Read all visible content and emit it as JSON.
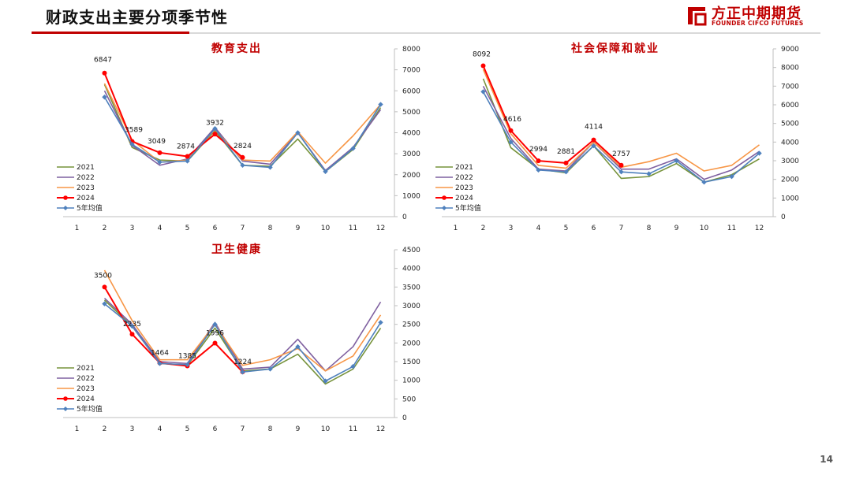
{
  "header": {
    "title": "财政支出主要分项季节性",
    "logo_cn": "方正中期期货",
    "logo_en": "FOUNDER CIFCO FUTURES"
  },
  "page_number": "14",
  "colors": {
    "2021": "#77933c",
    "2022": "#7f60a0",
    "2023": "#f79646",
    "2024": "#ff0000",
    "avg": "#4f81bd",
    "brand": "#c00000"
  },
  "chart_data": [
    {
      "type": "line",
      "title": "教育支出",
      "x": [
        "1",
        "2",
        "3",
        "4",
        "5",
        "6",
        "7",
        "8",
        "9",
        "10",
        "11",
        "12"
      ],
      "ylim": [
        0,
        8000
      ],
      "yticks": [
        0,
        1000,
        2000,
        3000,
        4000,
        5000,
        6000,
        7000,
        8000
      ],
      "legend_position": "left",
      "series": [
        {
          "name": "2021",
          "values": [
            null,
            6300,
            3300,
            2700,
            2650,
            4100,
            2450,
            2400,
            3700,
            2150,
            3200,
            5200
          ]
        },
        {
          "name": "2022",
          "values": [
            null,
            6000,
            3400,
            2450,
            2750,
            4250,
            2650,
            2500,
            4000,
            2200,
            3300,
            5100
          ]
        },
        {
          "name": "2023",
          "values": [
            null,
            6350,
            3650,
            2600,
            2700,
            4150,
            2700,
            2650,
            4050,
            2550,
            3850,
            5350
          ]
        },
        {
          "name": "2024",
          "values": [
            null,
            6847,
            3589,
            3049,
            2874,
            3932,
            2824,
            null,
            null,
            null,
            null,
            null
          ]
        },
        {
          "name": "5年均值",
          "values": [
            null,
            5700,
            3450,
            2600,
            2650,
            4200,
            2450,
            2350,
            4000,
            2150,
            3250,
            5350
          ]
        }
      ],
      "data_labels": [
        {
          "text": "6847"
        },
        {
          "text": "3589"
        },
        {
          "text": "3049"
        },
        {
          "text": "2874"
        },
        {
          "text": "3932"
        },
        {
          "text": "2824"
        }
      ]
    },
    {
      "type": "line",
      "title": "社会保障和就业",
      "x": [
        "1",
        "2",
        "3",
        "4",
        "5",
        "6",
        "7",
        "8",
        "9",
        "10",
        "11",
        "12"
      ],
      "ylim": [
        0,
        9000
      ],
      "yticks": [
        0,
        1000,
        2000,
        3000,
        4000,
        5000,
        6000,
        7000,
        8000,
        9000
      ],
      "legend_position": "left",
      "series": [
        {
          "name": "2021",
          "values": [
            null,
            7400,
            3700,
            2550,
            2350,
            3800,
            2050,
            2150,
            2850,
            1850,
            2250,
            3100
          ]
        },
        {
          "name": "2022",
          "values": [
            null,
            7000,
            4200,
            2550,
            2450,
            4000,
            2550,
            2550,
            3100,
            2000,
            2500,
            3500
          ]
        },
        {
          "name": "2023",
          "values": [
            null,
            7900,
            4450,
            2750,
            2600,
            4000,
            2650,
            2950,
            3400,
            2450,
            2750,
            3850
          ]
        },
        {
          "name": "2024",
          "values": [
            null,
            8092,
            4616,
            2994,
            2881,
            4114,
            2757,
            null,
            null,
            null,
            null,
            null
          ]
        },
        {
          "name": "5年均值",
          "values": [
            null,
            6700,
            4000,
            2500,
            2400,
            3800,
            2400,
            2300,
            3000,
            1850,
            2150,
            3400
          ]
        }
      ],
      "data_labels": [
        {
          "text": "8092"
        },
        {
          "text": "4616"
        },
        {
          "text": "2994"
        },
        {
          "text": "2881"
        },
        {
          "text": "4114"
        },
        {
          "text": "2757"
        }
      ]
    },
    {
      "type": "line",
      "title": "卫生健康",
      "x": [
        "1",
        "2",
        "3",
        "4",
        "5",
        "6",
        "7",
        "8",
        "9",
        "10",
        "11",
        "12"
      ],
      "ylim": [
        0,
        4500
      ],
      "yticks": [
        0,
        500,
        1000,
        1500,
        2000,
        2500,
        3000,
        3500,
        4000,
        4500
      ],
      "legend_position": "left",
      "series": [
        {
          "name": "2021",
          "values": [
            null,
            3150,
            2450,
            1450,
            1400,
            2400,
            1250,
            1300,
            1700,
            900,
            1300,
            2400
          ]
        },
        {
          "name": "2022",
          "values": [
            null,
            3200,
            2500,
            1500,
            1450,
            2550,
            1300,
            1350,
            2100,
            1250,
            1900,
            3100
          ]
        },
        {
          "name": "2023",
          "values": [
            null,
            3950,
            2600,
            1550,
            1550,
            2500,
            1400,
            1550,
            1850,
            1250,
            1650,
            2750
          ]
        },
        {
          "name": "2024",
          "values": [
            null,
            3500,
            2235,
            1464,
            1385,
            1996,
            1224,
            null,
            null,
            null,
            null,
            null
          ]
        },
        {
          "name": "5年均值",
          "values": [
            null,
            3050,
            2450,
            1450,
            1420,
            2500,
            1220,
            1300,
            1900,
            980,
            1370,
            2550
          ]
        }
      ],
      "data_labels": [
        {
          "text": "3500"
        },
        {
          "text": "2235"
        },
        {
          "text": "1464"
        },
        {
          "text": "1385"
        },
        {
          "text": "1996"
        },
        {
          "text": "1224"
        }
      ]
    }
  ]
}
